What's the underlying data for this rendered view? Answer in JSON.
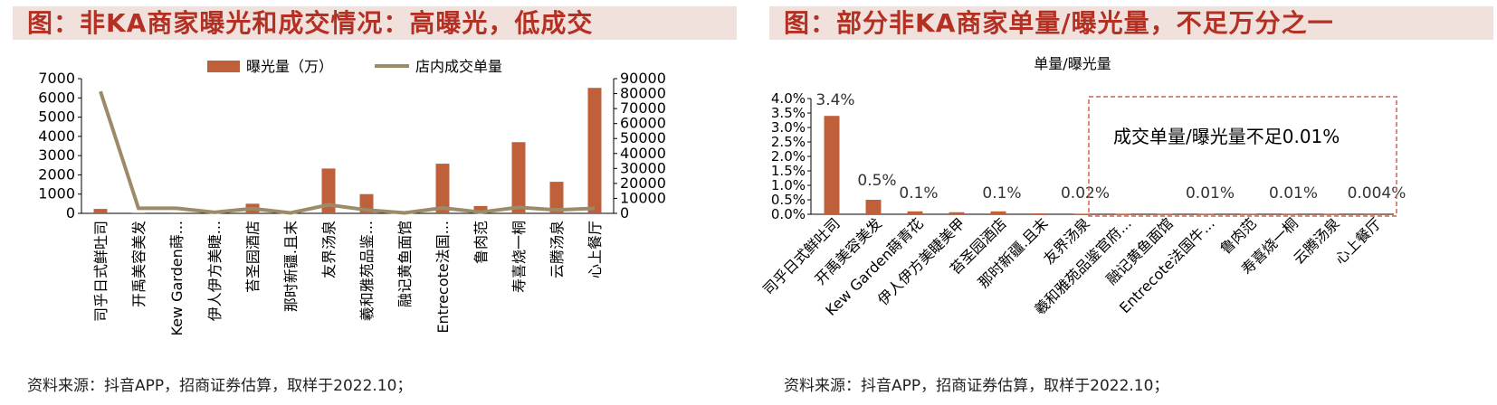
{
  "left": {
    "title": "图：非KA商家曝光和成交情况：高曝光，低成交",
    "source": "资料来源：抖音APP，招商证券估算，取样于2022.10；"
  },
  "right": {
    "title": "图：部分非KA商家单量/曝光量，不足万分之一",
    "source": "资料来源：抖音APP，招商证券估算，取样于2022.10；",
    "annotation": "成交单量/曝光量不足0.01%"
  },
  "colors": {
    "bar": "#c0603a",
    "line": "#9c8b68",
    "title_bg": "#f1e1dd",
    "title_text": "#b33022",
    "dashed_box": "#d0644a"
  },
  "chart_data": [
    {
      "type": "bar",
      "title": "",
      "categories": [
        "司乎日式鲜吐司",
        "开禹美容美发",
        "Kew Garden蒔...",
        "伊人伊方美睫...",
        "苔圣园酒店",
        "那时新疆.且末",
        "友界汤泉",
        "羲和雅苑品鉴...",
        "融记黄鱼面馆",
        "Entrecote法国...",
        "鲁肉范",
        "寿喜烧一桐",
        "云腾汤泉",
        "心上餐厅"
      ],
      "series": [
        {
          "name": "曝光量（万）",
          "axis": "left",
          "kind": "bar",
          "values": [
            230,
            30,
            40,
            60,
            500,
            50,
            2330,
            1000,
            60,
            2580,
            380,
            3700,
            1640,
            6520
          ]
        },
        {
          "name": "店内成交单量",
          "axis": "right",
          "kind": "line",
          "values": [
            81500,
            3400,
            3400,
            700,
            3200,
            300,
            5700,
            2300,
            300,
            3600,
            800,
            4000,
            2300,
            3300
          ]
        }
      ],
      "y_left": {
        "ylim": [
          0,
          7000
        ],
        "ticks": [
          "0",
          "1000",
          "2000",
          "3000",
          "4000",
          "5000",
          "6000",
          "7000"
        ]
      },
      "y_right": {
        "ylim": [
          0,
          90000
        ],
        "ticks": [
          "0",
          "10000",
          "20000",
          "30000",
          "40000",
          "50000",
          "60000",
          "70000",
          "80000",
          "90000"
        ]
      },
      "legend": "top"
    },
    {
      "type": "bar",
      "title": "单量/曝光量",
      "categories": [
        "司乎日式鲜吐司",
        "开禹美容美发",
        "Kew Garden蒔青花",
        "伊人伊方美睫美甲",
        "苔圣园酒店",
        "那时新疆.且末",
        "友界汤泉",
        "羲和雅苑品鉴官府...",
        "融记黄鱼面馆",
        "Entrecote法国牛...",
        "鲁肉范",
        "寿喜烧一桐",
        "云腾汤泉",
        "心上餐厅"
      ],
      "values": [
        3.4,
        0.5,
        0.1,
        0.07,
        0.1,
        0.03,
        0.02,
        0.02,
        0.01,
        0.01,
        0.01,
        0.01,
        0.01,
        0.004
      ],
      "data_labels": [
        "3.4%",
        "0.5%",
        "0.1%",
        "",
        "0.1%",
        "",
        "0.02%",
        "",
        "",
        "0.01%",
        "",
        "0.01%",
        "",
        "0.004%"
      ],
      "ylim": [
        0,
        4.0
      ],
      "y_ticks": [
        "0.0%",
        "0.5%",
        "1.0%",
        "1.5%",
        "2.0%",
        "2.5%",
        "3.0%",
        "3.5%",
        "4.0%"
      ]
    }
  ]
}
